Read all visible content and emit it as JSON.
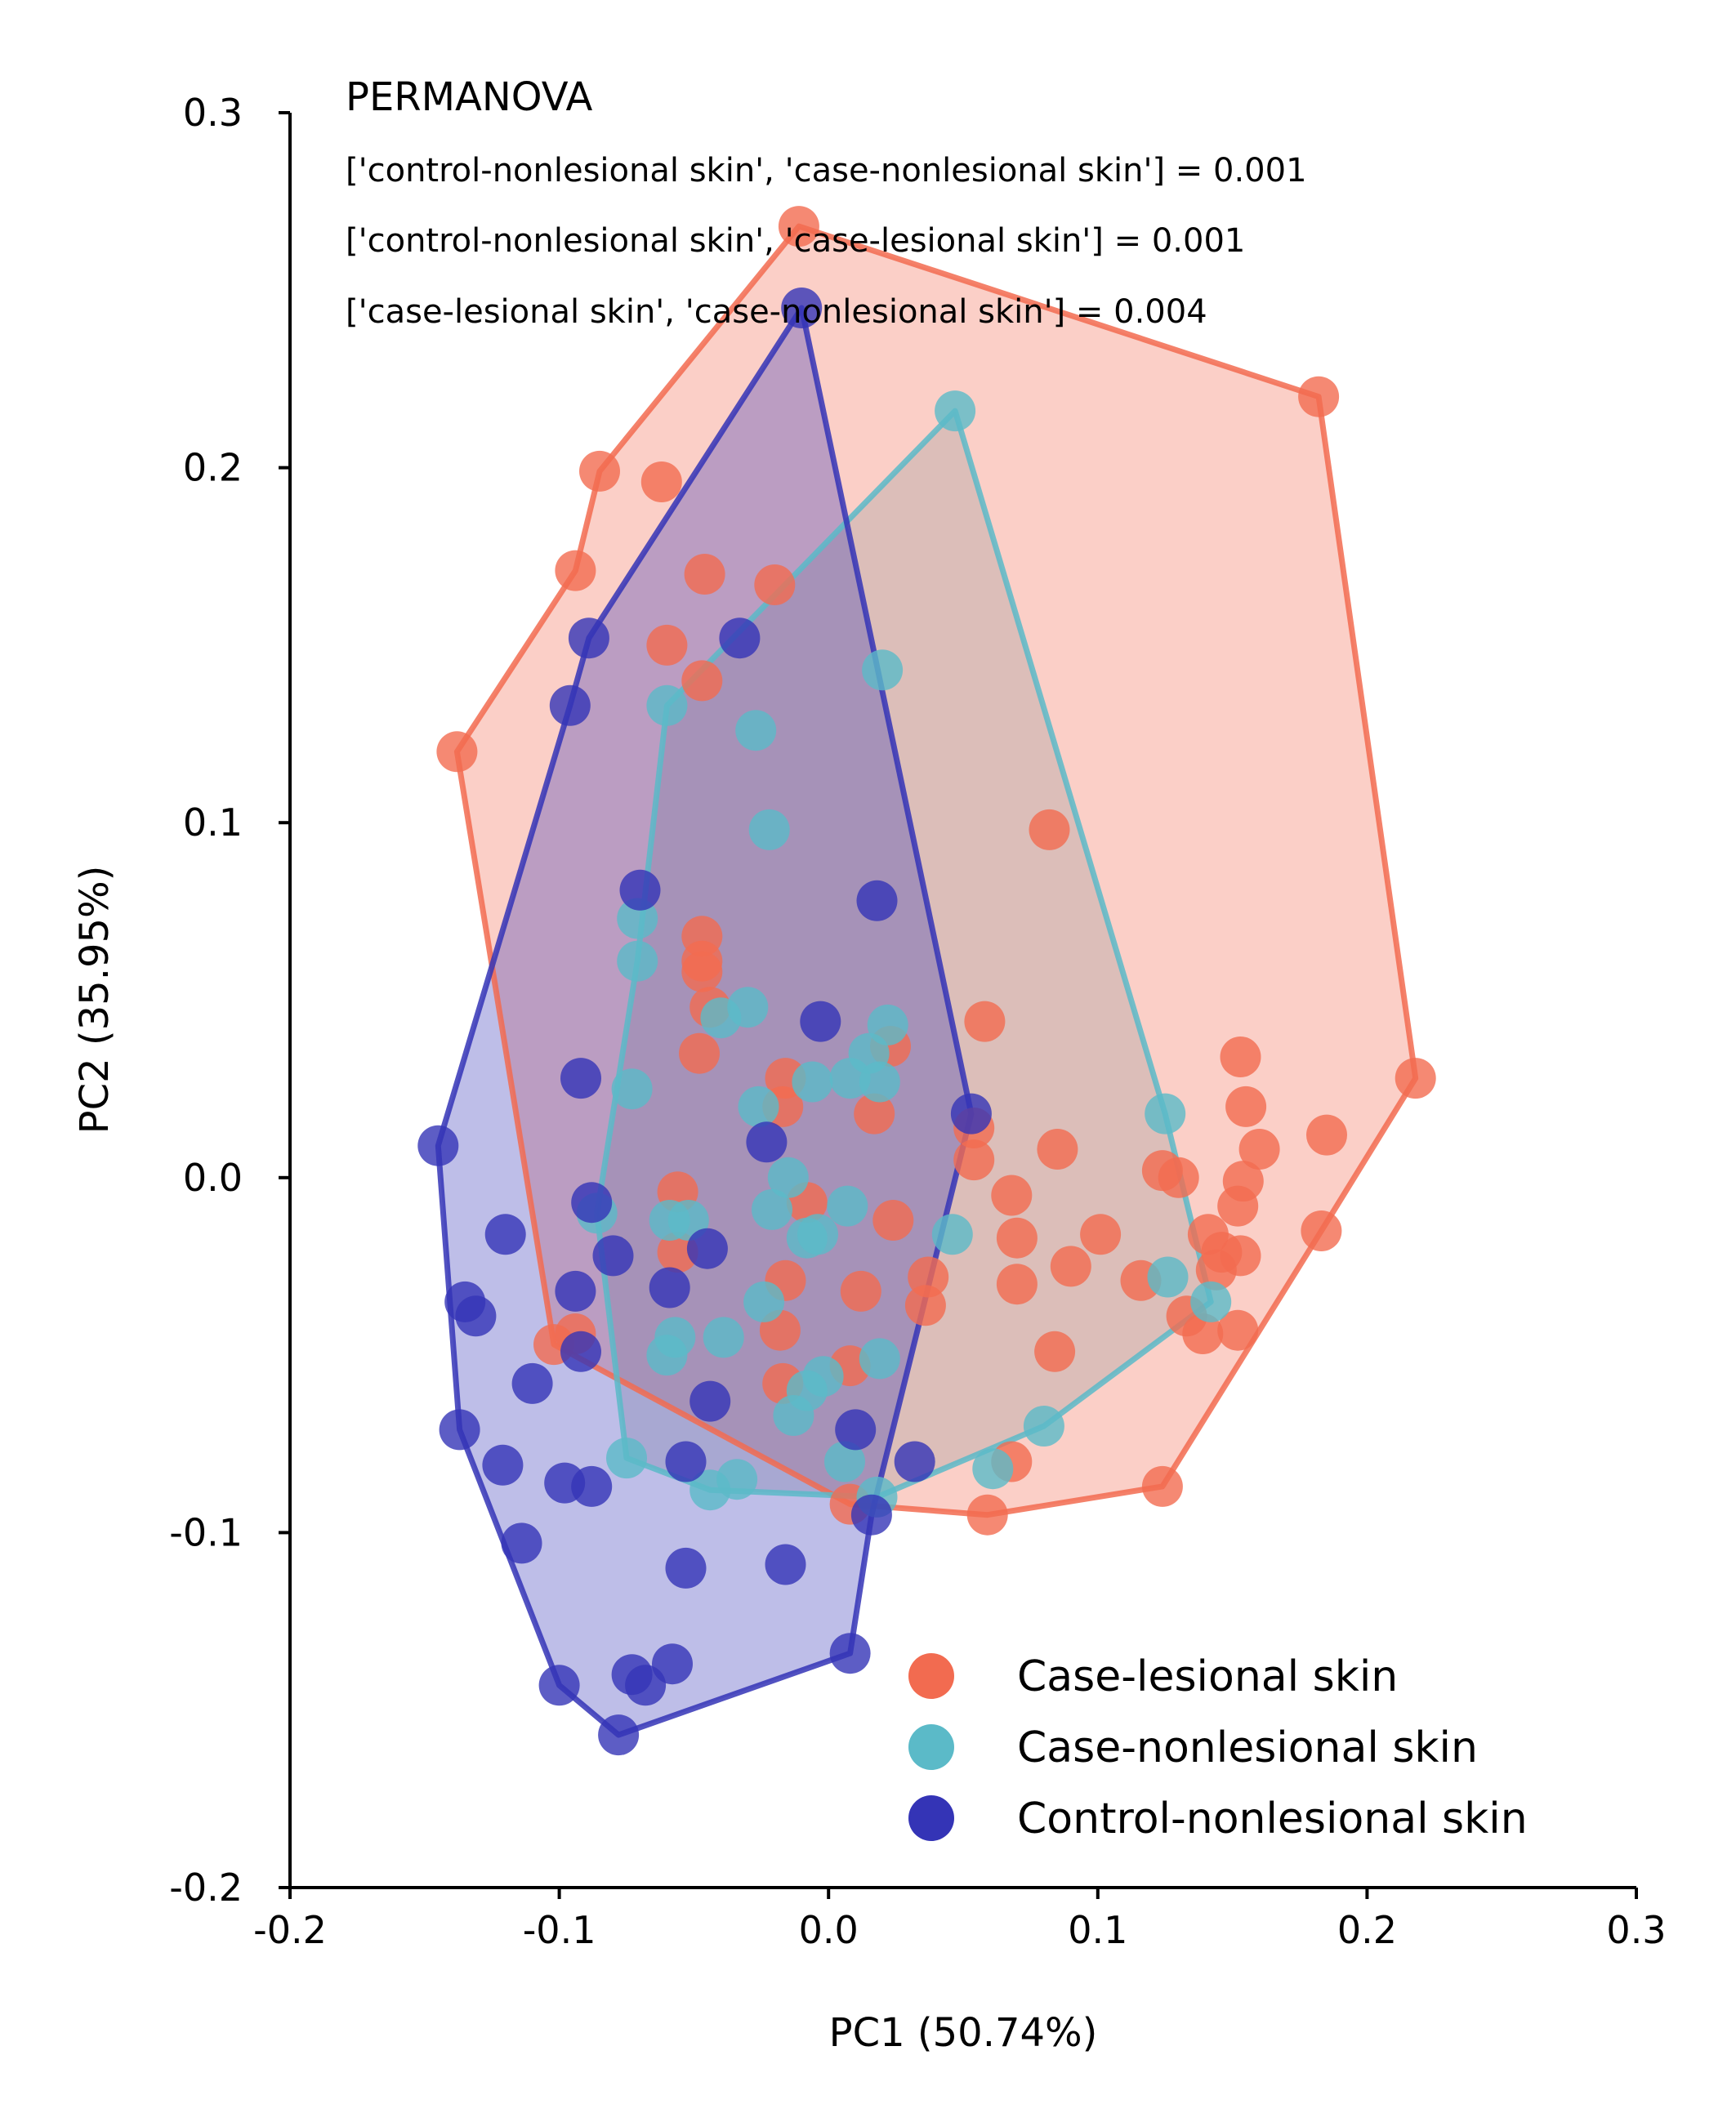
{
  "chart_data": {
    "type": "scatter",
    "xlabel": "PC1 (50.74%)",
    "ylabel": "PC2 (35.95%)",
    "xlim": [
      -0.2,
      0.3
    ],
    "ylim": [
      -0.2,
      0.3
    ],
    "xticks": [
      -0.2,
      -0.1,
      0.0,
      0.1,
      0.2,
      0.3
    ],
    "yticks": [
      -0.2,
      -0.1,
      0.0,
      0.1,
      0.2,
      0.3
    ],
    "xtick_labels": [
      "-0.2",
      "-0.1",
      "0.0",
      "0.1",
      "0.2",
      "0.3"
    ],
    "ytick_labels": [
      "-0.2",
      "-0.1",
      "0.0",
      "0.1",
      "0.2",
      "0.3"
    ],
    "grid": false,
    "legend_position": "bottom-right",
    "annotation": {
      "title": "PERMANOVA",
      "lines": [
        "['control-nonlesional skin', 'case-nonlesional skin'] = 0.001",
        "['control-nonlesional skin', 'case-lesional skin'] = 0.001",
        "['case-lesional skin', 'case-nonlesional skin'] = 0.004"
      ]
    },
    "series": [
      {
        "name": "Case-lesional skin",
        "color": "#f26b50",
        "fill": "#f26b50",
        "hull": [
          [
            -0.011,
            0.268
          ],
          [
            0.182,
            0.22
          ],
          [
            0.218,
            0.028
          ],
          [
            0.183,
            -0.015
          ],
          [
            0.124,
            -0.087
          ],
          [
            0.059,
            -0.095
          ],
          [
            0.008,
            -0.092
          ],
          [
            -0.102,
            -0.047
          ],
          [
            -0.138,
            0.12
          ],
          [
            -0.094,
            0.171
          ],
          [
            -0.085,
            0.199
          ]
        ],
        "points": [
          [
            -0.011,
            0.268
          ],
          [
            0.182,
            0.22
          ],
          [
            0.218,
            0.028
          ],
          [
            0.183,
            -0.015
          ],
          [
            0.124,
            -0.087
          ],
          [
            0.059,
            -0.095
          ],
          [
            0.008,
            -0.092
          ],
          [
            -0.102,
            -0.047
          ],
          [
            -0.138,
            0.12
          ],
          [
            -0.094,
            0.171
          ],
          [
            -0.085,
            0.199
          ],
          [
            -0.062,
            0.196
          ],
          [
            -0.046,
            0.17
          ],
          [
            -0.02,
            0.167
          ],
          [
            -0.06,
            0.15
          ],
          [
            -0.047,
            0.14
          ],
          [
            0.082,
            0.098
          ],
          [
            -0.047,
            0.068
          ],
          [
            -0.047,
            0.061
          ],
          [
            -0.047,
            0.058
          ],
          [
            -0.044,
            0.048
          ],
          [
            0.023,
            0.037
          ],
          [
            -0.048,
            0.035
          ],
          [
            -0.016,
            0.028
          ],
          [
            -0.017,
            0.02
          ],
          [
            0.017,
            0.018
          ],
          [
            0.058,
            0.044
          ],
          [
            0.153,
            0.034
          ],
          [
            0.155,
            0.02
          ],
          [
            0.16,
            0.008
          ],
          [
            0.185,
            0.012
          ],
          [
            0.154,
            -0.001
          ],
          [
            0.152,
            -0.008
          ],
          [
            0.054,
            0.014
          ],
          [
            0.054,
            0.005
          ],
          [
            0.085,
            0.008
          ],
          [
            0.068,
            -0.005
          ],
          [
            0.07,
            -0.017
          ],
          [
            0.07,
            -0.03
          ],
          [
            0.084,
            -0.049
          ],
          [
            0.09,
            -0.025
          ],
          [
            0.101,
            -0.016
          ],
          [
            0.116,
            -0.029
          ],
          [
            0.124,
            0.002
          ],
          [
            0.13,
            0.0
          ],
          [
            0.141,
            -0.016
          ],
          [
            0.146,
            -0.021
          ],
          [
            0.153,
            -0.022
          ],
          [
            0.144,
            -0.026
          ],
          [
            0.133,
            -0.039
          ],
          [
            0.139,
            -0.044
          ],
          [
            0.152,
            -0.043
          ],
          [
            0.068,
            -0.08
          ],
          [
            -0.056,
            -0.004
          ],
          [
            -0.056,
            -0.021
          ],
          [
            -0.008,
            -0.007
          ],
          [
            -0.016,
            -0.029
          ],
          [
            -0.018,
            -0.043
          ],
          [
            -0.017,
            -0.058
          ],
          [
            0.008,
            -0.053
          ],
          [
            0.012,
            -0.032
          ],
          [
            0.024,
            -0.012
          ],
          [
            0.037,
            -0.028
          ],
          [
            0.036,
            -0.036
          ],
          [
            -0.094,
            -0.044
          ]
        ]
      },
      {
        "name": "Case-nonlesional skin",
        "color": "#5bbac8",
        "fill": "#9a9a9a",
        "hull": [
          [
            0.047,
            0.216
          ],
          [
            0.125,
            0.018
          ],
          [
            0.142,
            -0.035
          ],
          [
            0.08,
            -0.07
          ],
          [
            0.018,
            -0.09
          ],
          [
            -0.044,
            -0.088
          ],
          [
            -0.075,
            -0.079
          ],
          [
            -0.086,
            -0.01
          ],
          [
            -0.071,
            0.061
          ],
          [
            -0.06,
            0.133
          ]
        ],
        "points": [
          [
            0.047,
            0.216
          ],
          [
            0.125,
            0.018
          ],
          [
            0.142,
            -0.035
          ],
          [
            0.08,
            -0.07
          ],
          [
            0.018,
            -0.09
          ],
          [
            -0.044,
            -0.088
          ],
          [
            -0.075,
            -0.079
          ],
          [
            -0.086,
            -0.01
          ],
          [
            -0.071,
            0.061
          ],
          [
            -0.06,
            0.133
          ],
          [
            0.02,
            0.143
          ],
          [
            -0.027,
            0.126
          ],
          [
            -0.022,
            0.098
          ],
          [
            -0.071,
            0.073
          ],
          [
            -0.03,
            0.048
          ],
          [
            -0.04,
            0.045
          ],
          [
            0.022,
            0.043
          ],
          [
            -0.073,
            0.025
          ],
          [
            -0.026,
            0.02
          ],
          [
            -0.006,
            0.027
          ],
          [
            0.008,
            0.028
          ],
          [
            0.015,
            0.035
          ],
          [
            0.019,
            0.027
          ],
          [
            -0.015,
            0.0
          ],
          [
            -0.021,
            -0.009
          ],
          [
            -0.008,
            -0.017
          ],
          [
            -0.004,
            -0.016
          ],
          [
            0.007,
            -0.008
          ],
          [
            0.046,
            -0.016
          ],
          [
            -0.059,
            -0.012
          ],
          [
            -0.052,
            -0.012
          ],
          [
            -0.024,
            -0.035
          ],
          [
            -0.039,
            -0.045
          ],
          [
            -0.057,
            -0.045
          ],
          [
            -0.06,
            -0.05
          ],
          [
            0.019,
            -0.051
          ],
          [
            -0.002,
            -0.056
          ],
          [
            -0.008,
            -0.06
          ],
          [
            -0.013,
            -0.067
          ],
          [
            0.006,
            -0.08
          ],
          [
            0.061,
            -0.082
          ],
          [
            -0.034,
            -0.085
          ],
          [
            0.126,
            -0.028
          ]
        ]
      },
      {
        "name": "Control-nonlesional skin",
        "color": "#3434b6",
        "fill": "#3434b6",
        "hull": [
          [
            -0.01,
            0.245
          ],
          [
            0.053,
            0.018
          ],
          [
            0.016,
            -0.095
          ],
          [
            0.008,
            -0.134
          ],
          [
            -0.078,
            -0.157
          ],
          [
            -0.1,
            -0.143
          ],
          [
            -0.137,
            -0.071
          ],
          [
            -0.145,
            0.009
          ],
          [
            -0.096,
            0.133
          ],
          [
            -0.089,
            0.152
          ]
        ],
        "points": [
          [
            -0.01,
            0.245
          ],
          [
            0.053,
            0.018
          ],
          [
            0.016,
            -0.095
          ],
          [
            0.008,
            -0.134
          ],
          [
            -0.078,
            -0.157
          ],
          [
            -0.1,
            -0.143
          ],
          [
            -0.137,
            -0.071
          ],
          [
            -0.145,
            0.009
          ],
          [
            -0.096,
            0.133
          ],
          [
            -0.089,
            0.152
          ],
          [
            -0.033,
            0.152
          ],
          [
            -0.07,
            0.081
          ],
          [
            0.018,
            0.078
          ],
          [
            -0.003,
            0.044
          ],
          [
            -0.092,
            0.028
          ],
          [
            -0.023,
            0.01
          ],
          [
            -0.088,
            -0.007
          ],
          [
            -0.08,
            -0.022
          ],
          [
            -0.045,
            -0.02
          ],
          [
            -0.059,
            -0.031
          ],
          [
            -0.094,
            -0.032
          ],
          [
            -0.135,
            -0.035
          ],
          [
            -0.131,
            -0.039
          ],
          [
            -0.12,
            -0.016
          ],
          [
            -0.092,
            -0.049
          ],
          [
            -0.11,
            -0.058
          ],
          [
            -0.044,
            -0.063
          ],
          [
            0.01,
            -0.071
          ],
          [
            -0.121,
            -0.081
          ],
          [
            -0.053,
            -0.08
          ],
          [
            0.032,
            -0.08
          ],
          [
            -0.098,
            -0.086
          ],
          [
            -0.088,
            -0.087
          ],
          [
            -0.114,
            -0.103
          ],
          [
            -0.053,
            -0.11
          ],
          [
            -0.016,
            -0.109
          ],
          [
            -0.073,
            -0.14
          ],
          [
            -0.068,
            -0.143
          ],
          [
            -0.058,
            -0.137
          ]
        ]
      }
    ]
  }
}
